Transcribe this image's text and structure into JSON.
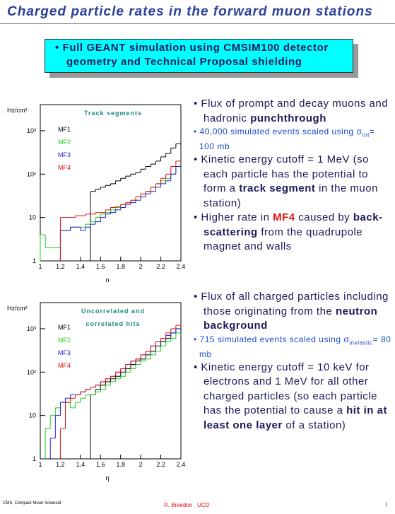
{
  "header": {
    "title": "Charged particle rates in the forward muon stations"
  },
  "box": {
    "bullet": "Full GEANT simulation using CMSIM100 detector geometry and Technical Proposal shielding"
  },
  "blocks": [
    {
      "bullets": [
        [
          "Flux of prompt and decay muons and hadronic ",
          "punchthrough"
        ],
        [
          "Kinetic energy cutoff = 1 MeV (so each particle has the potential to form a ",
          "track segment",
          " in the muon station)"
        ],
        [
          "Higher rate in ",
          "MF4",
          " caused by ",
          "back-scattering",
          " from the quadrupole magnet and walls"
        ]
      ],
      "sub_bullet": [
        "40,000 simulated events scaled using ",
        "σ",
        "tot",
        "= 100 mb"
      ]
    },
    {
      "bullets": [
        [
          "Flux of all charged particles including those originating from the ",
          "neutron background"
        ],
        [
          "Kinetic energy cutoff = 10 keV for electrons and 1 MeV for all other charged particles (so each particle has the potential to cause a ",
          "hit in at least one layer",
          " of a station)"
        ]
      ],
      "sub_bullet": [
        "715 simulated events scaled using ",
        "σ",
        "inelastic",
        "= 80 mb"
      ]
    }
  ],
  "footer": {
    "left": "CMS, Compact Muon Solenoid",
    "center": "R. Breedon   UCD",
    "page": "1"
  },
  "chart_data": [
    {
      "type": "histogram",
      "title": "Track segments",
      "ylabel": "Hz/cm²",
      "xlabel": "η",
      "log_y": true,
      "legend": "upper left",
      "bins": [
        1,
        1.05,
        1.1,
        1.15,
        1.2,
        1.25,
        1.3,
        1.35,
        1.4,
        1.45,
        1.5,
        1.55,
        1.6,
        1.65,
        1.7,
        1.75,
        1.8,
        1.85,
        1.9,
        1.95,
        2,
        2.05,
        2.1,
        2.15,
        2.2,
        2.25,
        2.3,
        2.35,
        2.4
      ],
      "xlim": [
        1,
        2.4
      ],
      "xticks": [
        1,
        1.2,
        1.4,
        1.6,
        1.8,
        2,
        2.2,
        2.4
      ],
      "ylim": [
        1,
        4000
      ],
      "yticks": [
        1,
        10,
        {
          "value": 100,
          "label": "10²"
        },
        {
          "value": 1000,
          "label": "10³"
        }
      ],
      "series": [
        {
          "name": "MF1",
          "color": "#000000",
          "values": [
            null,
            null,
            null,
            null,
            null,
            null,
            null,
            null,
            null,
            null,
            40,
            45,
            50,
            55,
            60,
            70,
            80,
            90,
            100,
            110,
            130,
            150,
            170,
            200,
            250,
            300,
            400,
            500
          ]
        },
        {
          "name": "MF2",
          "color": "#22cc22",
          "values": [
            4,
            2,
            2,
            2,
            5,
            5,
            6,
            6,
            6,
            7,
            8,
            10,
            12,
            13,
            15,
            17,
            20,
            22,
            25,
            30,
            35,
            40,
            50,
            60,
            70,
            80,
            100,
            150
          ]
        },
        {
          "name": "MF3",
          "color": "#2222cc",
          "values": [
            null,
            null,
            null,
            null,
            5,
            5,
            6,
            6,
            5,
            6,
            7,
            8,
            10,
            12,
            13,
            15,
            17,
            20,
            22,
            25,
            30,
            35,
            40,
            50,
            60,
            70,
            100,
            150
          ]
        },
        {
          "name": "MF4",
          "color": "#dd1111",
          "values": [
            null,
            null,
            null,
            null,
            10,
            10,
            10,
            11,
            11,
            12,
            12,
            13,
            13,
            15,
            17,
            18,
            20,
            22,
            25,
            30,
            35,
            40,
            50,
            60,
            80,
            100,
            150,
            200
          ]
        }
      ]
    },
    {
      "type": "histogram",
      "title": [
        "Uncorrelated and",
        "correlated hits"
      ],
      "ylabel": "Hz/cm²",
      "xlabel": "η",
      "log_y": true,
      "legend": "upper left",
      "bins": [
        1,
        1.05,
        1.1,
        1.15,
        1.2,
        1.25,
        1.3,
        1.35,
        1.4,
        1.45,
        1.5,
        1.55,
        1.6,
        1.65,
        1.7,
        1.75,
        1.8,
        1.85,
        1.9,
        1.95,
        2,
        2.05,
        2.1,
        2.15,
        2.2,
        2.25,
        2.3,
        2.35,
        2.4
      ],
      "xlim": [
        1,
        2.4
      ],
      "xticks": [
        1,
        1.2,
        1.4,
        1.6,
        1.8,
        2,
        2.2,
        2.4
      ],
      "ylim": [
        1,
        4000
      ],
      "yticks": [
        1,
        10,
        {
          "value": 100,
          "label": "10²"
        },
        {
          "value": 1000,
          "label": "10³"
        }
      ],
      "series": [
        {
          "name": "MF1",
          "color": "#000000",
          "values": [
            null,
            null,
            null,
            null,
            null,
            null,
            null,
            null,
            null,
            null,
            30,
            40,
            50,
            60,
            70,
            80,
            100,
            120,
            150,
            180,
            200,
            250,
            300,
            400,
            500,
            600,
            800,
            1000
          ]
        },
        {
          "name": "MF2",
          "color": "#22cc22",
          "values": [
            null,
            5,
            10,
            15,
            20,
            20,
            15,
            20,
            25,
            30,
            30,
            35,
            40,
            50,
            60,
            70,
            80,
            100,
            120,
            150,
            180,
            200,
            250,
            300,
            400,
            500,
            600,
            800
          ]
        },
        {
          "name": "MF3",
          "color": "#2222cc",
          "values": [
            null,
            null,
            3,
            10,
            20,
            25,
            30,
            30,
            35,
            40,
            45,
            50,
            60,
            70,
            80,
            100,
            120,
            150,
            180,
            200,
            250,
            300,
            400,
            500,
            600,
            700,
            800,
            1000
          ]
        },
        {
          "name": "MF4",
          "color": "#dd1111",
          "values": [
            null,
            null,
            null,
            null,
            5,
            20,
            25,
            30,
            35,
            40,
            45,
            50,
            60,
            70,
            80,
            100,
            120,
            150,
            180,
            200,
            250,
            300,
            400,
            500,
            600,
            800,
            1000,
            1200
          ]
        }
      ]
    }
  ]
}
